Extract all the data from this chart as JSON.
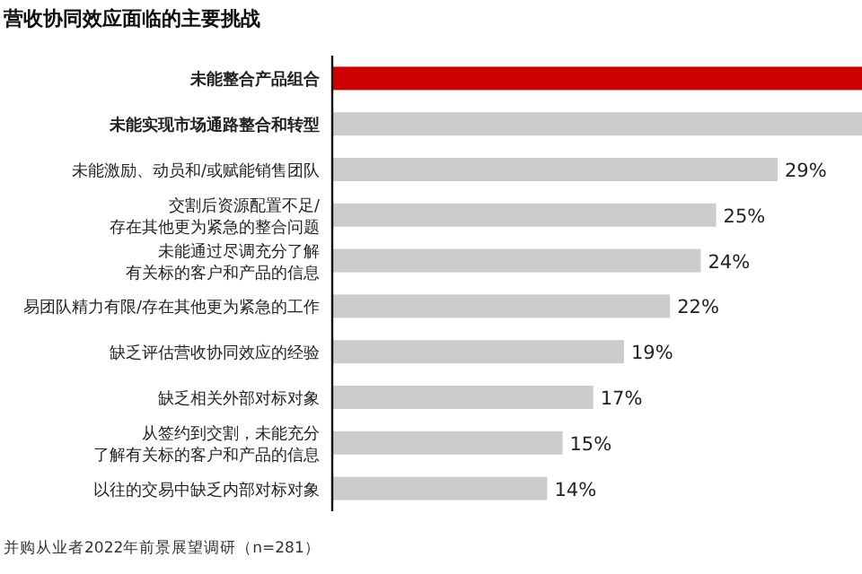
{
  "chart_data": {
    "type": "bar",
    "orientation": "horizontal",
    "title": "营收协同效应面临的主要挑战",
    "categories": [
      "未能整合产品组合",
      "未能实现市场通路整合和转型",
      "未能激励、动员和/或赋能销售团队",
      "交割后资源配置不足/存在其他更为紧急的整合问题",
      "未能通过尽调充分了解有关标的客户和产品的信息",
      "易团队精力有限/存在其他更为紧急的工作",
      "缺乏评估营收协同效应的经验",
      "缺乏相关外部对标对象",
      "从签约到交割，未能充分了解有关标的客户和产品的信息",
      "以往的交易中缺乏内部对标对象"
    ],
    "values": [
      34.5,
      34.5,
      29,
      25,
      24,
      22,
      19,
      17,
      15,
      14
    ],
    "colors": [
      "#cc0000",
      "#cccccc",
      "#cccccc",
      "#cccccc",
      "#cccccc",
      "#cccccc",
      "#cccccc",
      "#cccccc",
      "#cccccc",
      "#cccccc"
    ],
    "value_labels": [
      null,
      null,
      "29%",
      "25%",
      "24%",
      "22%",
      "19%",
      "17%",
      "15%",
      "14%"
    ],
    "xlim": [
      0,
      34.5
    ],
    "tick_labels": "y",
    "annotations": [
      "并购从业者2022年前景展望调研（n=281）"
    ]
  }
}
